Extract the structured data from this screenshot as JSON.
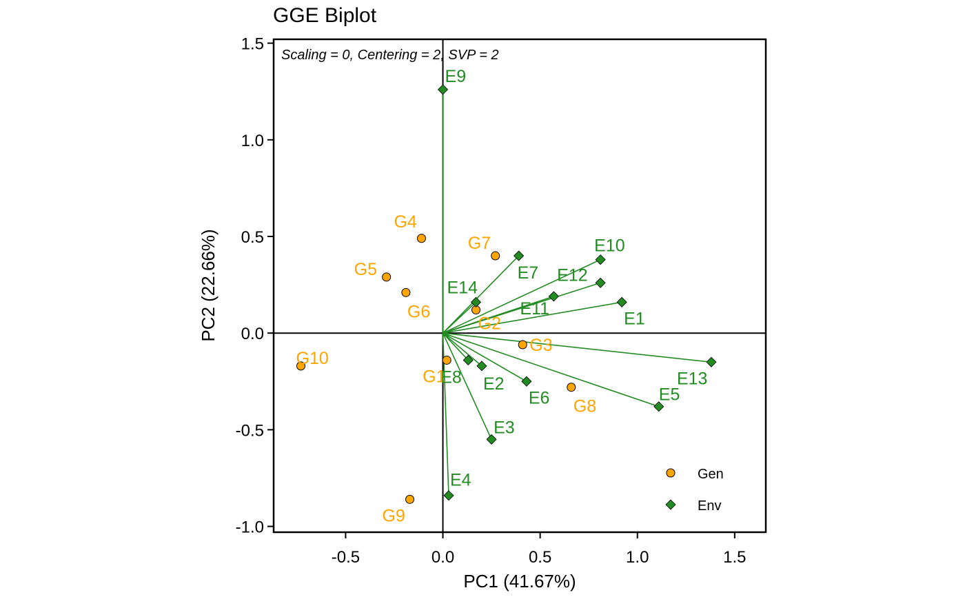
{
  "chart_data": {
    "type": "scatter",
    "title": "GGE Biplot",
    "subtitle": "Scaling = 0, Centering = 2, SVP = 2",
    "xlabel": "PC1 (41.67%)",
    "ylabel": "PC2 (22.66%)",
    "xlim": [
      -0.87,
      1.66
    ],
    "ylim": [
      -1.03,
      1.52
    ],
    "xticks": [
      -0.5,
      0.0,
      0.5,
      1.0,
      1.5
    ],
    "yticks": [
      -1.0,
      -0.5,
      0.0,
      0.5,
      1.0,
      1.5
    ],
    "xtick_labels": [
      "-0.5",
      "0.0",
      "0.5",
      "1.0",
      "1.5"
    ],
    "ytick_labels": [
      "-1.0",
      "-0.5",
      "0.0",
      "0.5",
      "1.0",
      "1.5"
    ],
    "grid": false,
    "legend_position": "bottom-right",
    "colors": {
      "gen": "#FFA500",
      "env": "#228B22",
      "axis": "#000000"
    },
    "series": [
      {
        "name": "Gen",
        "marker": "circle",
        "points": [
          {
            "label": "G1",
            "x": 0.02,
            "y": -0.14
          },
          {
            "label": "G2",
            "x": 0.17,
            "y": 0.12
          },
          {
            "label": "G3",
            "x": 0.41,
            "y": -0.06
          },
          {
            "label": "G4",
            "x": -0.11,
            "y": 0.49
          },
          {
            "label": "G5",
            "x": -0.29,
            "y": 0.29
          },
          {
            "label": "G6",
            "x": -0.19,
            "y": 0.21
          },
          {
            "label": "G7",
            "x": 0.27,
            "y": 0.4
          },
          {
            "label": "G8",
            "x": 0.66,
            "y": -0.28
          },
          {
            "label": "G9",
            "x": -0.17,
            "y": -0.86
          },
          {
            "label": "G10",
            "x": -0.73,
            "y": -0.17
          }
        ]
      },
      {
        "name": "Env",
        "marker": "diamond",
        "points": [
          {
            "label": "E1",
            "x": 0.92,
            "y": 0.16
          },
          {
            "label": "E2",
            "x": 0.2,
            "y": -0.17
          },
          {
            "label": "E3",
            "x": 0.25,
            "y": -0.55
          },
          {
            "label": "E4",
            "x": 0.03,
            "y": -0.84
          },
          {
            "label": "E5",
            "x": 1.11,
            "y": -0.38
          },
          {
            "label": "E6",
            "x": 0.43,
            "y": -0.25
          },
          {
            "label": "E7",
            "x": 0.39,
            "y": 0.4
          },
          {
            "label": "E8",
            "x": 0.13,
            "y": -0.14
          },
          {
            "label": "E9",
            "x": 0.0,
            "y": 1.26
          },
          {
            "label": "E10",
            "x": 0.81,
            "y": 0.38
          },
          {
            "label": "E11",
            "x": 0.57,
            "y": 0.19
          },
          {
            "label": "E12",
            "x": 0.81,
            "y": 0.26
          },
          {
            "label": "E13",
            "x": 1.38,
            "y": -0.15
          },
          {
            "label": "E14",
            "x": 0.17,
            "y": 0.16
          }
        ]
      }
    ]
  }
}
